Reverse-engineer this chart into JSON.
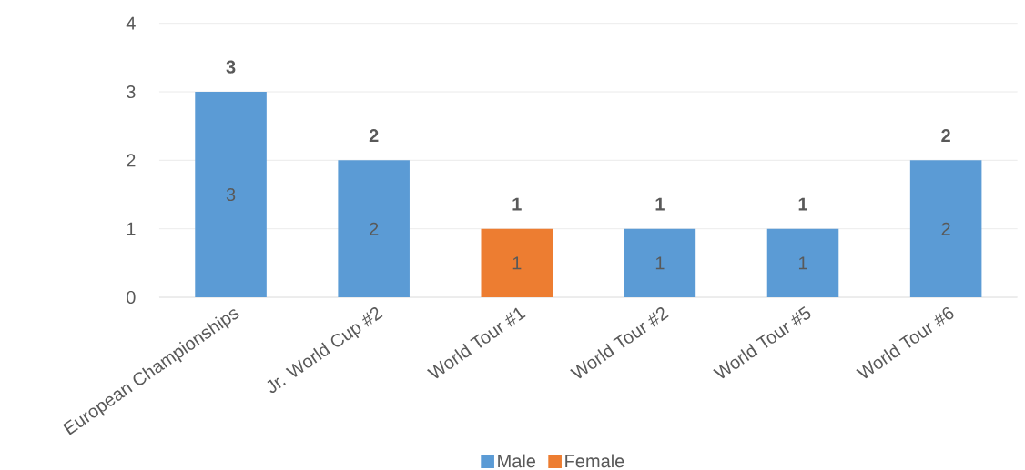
{
  "chart_data": {
    "type": "bar",
    "categories": [
      "European Championships",
      "Jr. World Cup #2",
      "World Tour #1",
      "World Tour #2",
      "World Tour #5",
      "World Tour #6"
    ],
    "series": [
      {
        "name": "Male",
        "color": "#5b9bd5",
        "values": [
          3,
          2,
          null,
          1,
          1,
          2
        ]
      },
      {
        "name": "Female",
        "color": "#ed7d31",
        "values": [
          null,
          null,
          1,
          null,
          null,
          null
        ]
      }
    ],
    "ylim": [
      0,
      4
    ],
    "yticks": [
      0,
      1,
      2,
      3,
      4
    ],
    "grid": "y",
    "legend": "bottom",
    "data_labels": true,
    "totals": [
      "3",
      "2",
      "1",
      "1",
      "1",
      "2"
    ]
  }
}
